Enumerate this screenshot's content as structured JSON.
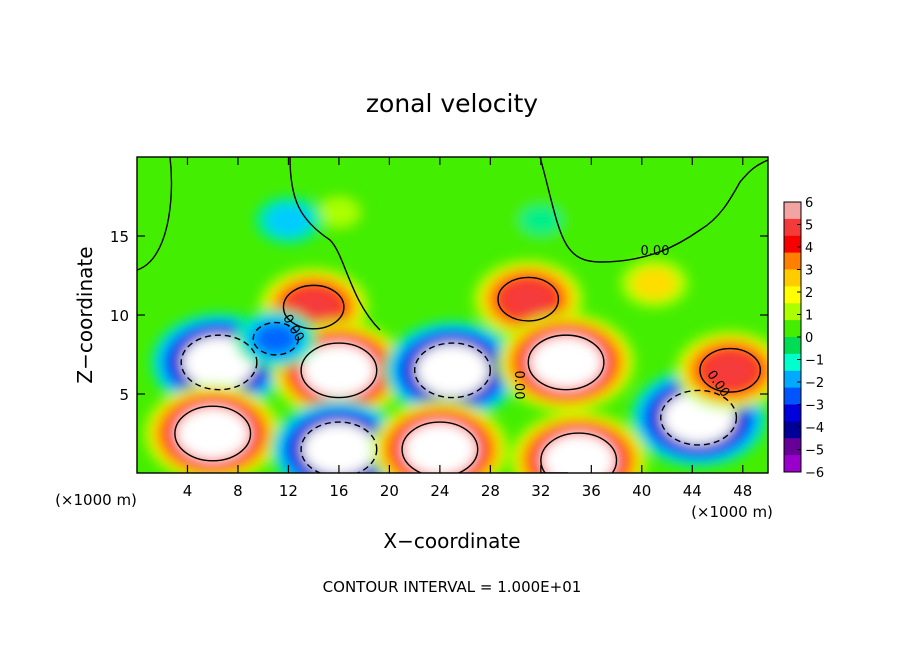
{
  "chart_data": {
    "type": "heatmap",
    "title": "zonal velocity",
    "xlabel": "X−coordinate",
    "ylabel": "Z−coordinate",
    "x_unit_label_left": "(×1000 m)",
    "x_unit_label_right": "(×1000 m)",
    "footer": "CONTOUR INTERVAL = 1.000E+01",
    "xlim": [
      0,
      50
    ],
    "ylim": [
      0,
      20
    ],
    "x_ticks": [
      4,
      8,
      12,
      16,
      20,
      24,
      28,
      32,
      36,
      40,
      44,
      48
    ],
    "y_ticks": [
      5,
      10,
      15
    ],
    "colorbar": {
      "ticks": [
        6,
        5,
        4,
        3,
        2,
        1,
        0,
        -1,
        -2,
        -3,
        -4,
        -5,
        -6
      ],
      "range": [
        -6,
        6
      ],
      "colors": [
        "#f4a3a3",
        "#f53a3a",
        "#f80000",
        "#ff7f00",
        "#ffcc00",
        "#ffff00",
        "#aaff00",
        "#44ee00",
        "#00dd55",
        "#00ffcc",
        "#00aaff",
        "#0055ff",
        "#0000dd",
        "#000099",
        "#660099",
        "#9900cc"
      ]
    },
    "contour_labels": [
      "0.00",
      "0.00",
      "0.00",
      "0.00"
    ],
    "features": [
      {
        "type": "max",
        "x": 16,
        "y": 16.5,
        "value": 1.5
      },
      {
        "type": "min",
        "x": 12,
        "y": 16,
        "value": -2
      },
      {
        "type": "min",
        "x": 32,
        "y": 16,
        "value": -1.5
      },
      {
        "type": "max",
        "x": 41,
        "y": 12,
        "value": 2
      },
      {
        "type": "max",
        "x": 14,
        "y": 10.5,
        "value": 5
      },
      {
        "type": "max",
        "x": 31,
        "y": 11,
        "value": 5
      },
      {
        "type": "min",
        "x": 6.5,
        "y": 7,
        "value": -7
      },
      {
        "type": "max",
        "x": 16,
        "y": 6.5,
        "value": 7
      },
      {
        "type": "min",
        "x": 25,
        "y": 6.5,
        "value": -7
      },
      {
        "type": "max",
        "x": 34,
        "y": 7,
        "value": 7
      },
      {
        "type": "min",
        "x": 44.5,
        "y": 3.5,
        "value": -7
      },
      {
        "type": "max",
        "x": 47,
        "y": 6.5,
        "value": 5
      },
      {
        "type": "max",
        "x": 6,
        "y": 2.5,
        "value": 7
      },
      {
        "type": "min",
        "x": 16,
        "y": 1.5,
        "value": -7
      },
      {
        "type": "max",
        "x": 24,
        "y": 1.5,
        "value": 7
      },
      {
        "type": "max",
        "x": 35,
        "y": 0.8,
        "value": 7
      },
      {
        "type": "min",
        "x": 11,
        "y": 8.5,
        "value": -3
      }
    ],
    "grid": false
  }
}
